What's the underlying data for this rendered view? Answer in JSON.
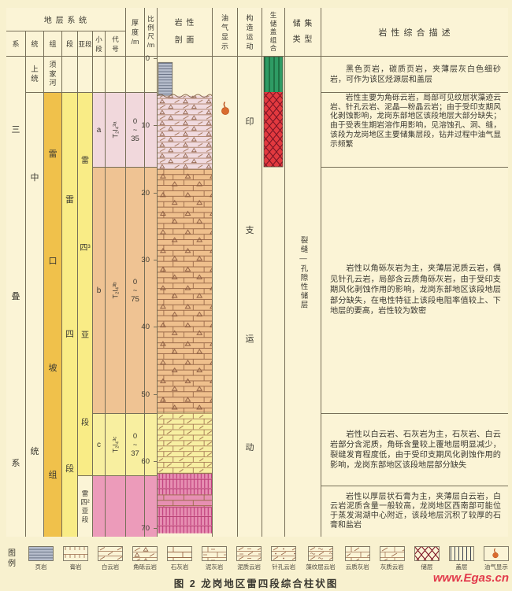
{
  "figure": {
    "caption": "图 2  龙岗地区雷四段综合柱状图",
    "watermark": "www.Egas.cn"
  },
  "header": {
    "strata_system": "地 层 系 统",
    "sub_columns": [
      "系",
      "统",
      "组",
      "段",
      "亚段",
      "小段",
      "代号"
    ],
    "thickness": "厚\n度\n/m",
    "scale": "比\n例\n尺\n/m",
    "lithology": "岩  性\n剖  面",
    "oil_gas_show": "油\n气\n显\n示",
    "tectonic": "构\n造\n运\n动",
    "src_assemblage": "生\n储\n盖\n组\n合",
    "reservoir_type": "储 集\n类 型",
    "description": "岩 性 综 合 描 述"
  },
  "strata": {
    "system": "三\n叠\n系",
    "series_upper": "上\n统",
    "series_middle": "中\n统",
    "formation_upper": "须\n家\n河",
    "formation_middle": "雷\n口\n坡\n组",
    "member": "雷\n四\n段",
    "submember_upper": "雷\n四³\n亚\n段",
    "submember_lower": "雷\n四²\n亚\n段",
    "units": [
      {
        "sub": "a",
        "code": "T₂l₄³ᵃ",
        "thickness": "0\n~\n35"
      },
      {
        "sub": "b",
        "code": "T₂l₄³ᵇ",
        "thickness": "0\n~\n75"
      },
      {
        "sub": "c",
        "code": "T₂l₄³ᶜ",
        "thickness": "0\n~\n37"
      }
    ]
  },
  "scale_labels": [
    "0",
    "10",
    "20",
    "30",
    "40",
    "50",
    "60",
    "70"
  ],
  "tectonic_stage": "印\n支\n运\n动",
  "reservoir_type_label": "裂缝—孔隙性储层",
  "descriptions": [
    "黑色页岩，碳质页岩，夹薄层灰白色细砂岩，可作为该区烃源层和盖层",
    "岩性主要为角砾云岩，局部可见纹层状藻迹云岩、针孔云岩、泥晶—粉晶云岩；由于受印支期风化剥蚀影响，龙岗东部地区该段地层大部分缺失；由于受表生期岩溶作用影响，见溶蚀孔、洞、缝，该段为龙岗地区主要储集层段，钻井过程中油气显示频繁",
    "岩性以角砾灰岩为主，夹薄层泥质云岩，偶见针孔云岩，局部含云质角砾灰岩，由于受印支期风化剥蚀作用的影响，龙岗东部地区该段地层部分缺失，在电性特征上该段电阻率值较上、下地层的要高，岩性较为致密",
    "岩性以白云岩、石灰岩为主，石灰岩、白云岩部分含泥质，角砾含量较上覆地层明显减少，裂缝发育程度低，由于受印支期风化剥蚀作用的影响，龙岗东部地区该段地层部分缺失",
    "岩性以厚层状石膏为主，夹薄层白云岩，白云岩泥质含量一般较高，龙岗地区西南部可能位于蒸发潟湖中心附近，该段地层沉积了较厚的石膏和盐岩"
  ],
  "legend": {
    "title": "图\n例",
    "items": [
      {
        "label": "页岩",
        "pattern": "shale"
      },
      {
        "label": "膏岩",
        "pattern": "gypsum"
      },
      {
        "label": "白云岩",
        "pattern": "dolomite"
      },
      {
        "label": "角砾云岩",
        "pattern": "breccia-dolomite"
      },
      {
        "label": "石灰岩",
        "pattern": "limestone"
      },
      {
        "label": "泥灰岩",
        "pattern": "marl"
      },
      {
        "label": "泥质云岩",
        "pattern": "muddy-dolomite"
      },
      {
        "label": "针孔云岩",
        "pattern": "pinhole-dolomite"
      },
      {
        "label": "藻纹层云岩",
        "pattern": "algal-dolomite"
      },
      {
        "label": "云质灰岩",
        "pattern": "dolomitic-limestone"
      },
      {
        "label": "灰质云岩",
        "pattern": "limy-dolomite"
      },
      {
        "label": "储层",
        "pattern": "reservoir"
      },
      {
        "label": "盖层",
        "pattern": "caprock"
      },
      {
        "label": "油气显示",
        "pattern": "oil-gas-show"
      }
    ]
  },
  "colors": {
    "paper": "#F8F1CF",
    "cream": "#FBF4D6",
    "line": "#776f58",
    "ink": "#3b3931",
    "gold": "#F0C14B",
    "yellow": "#F9EC86",
    "pink_a": "#F1D8DC",
    "tan_b": "#EFC393",
    "yellow_c": "#F8EFA0",
    "pink_d": "#EC9BBA",
    "cap_green": "#2E9B64",
    "res_red": "#E2393F",
    "brand_red": "#E2394B"
  }
}
